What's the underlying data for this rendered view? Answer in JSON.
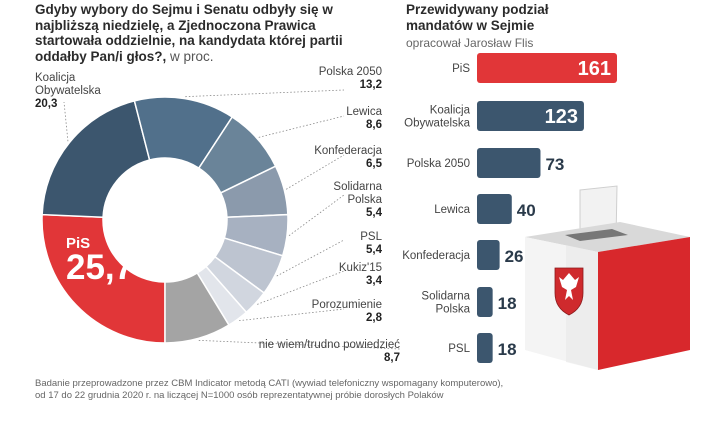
{
  "colors": {
    "pis": "#e13638",
    "party": "#3c566e",
    "light": "#b9c0cc"
  },
  "left": {
    "title": "Gdyby wybory do Sejmu i Senatu odbyły się w najbliższą niedzielę, a Zjednoczona Prawica startowała oddzielnie, na kandydata której partii oddałby Pan/i głos?,",
    "unit": "w proc."
  },
  "right": {
    "title_line1": "Przewidywany podział",
    "title_line2": "mandatów w Sejmie",
    "author": "opracował Jarosław Flis"
  },
  "footnote_line1": "Badanie przeprowadzone przez CBM Indicator metodą CATI (wywiad telefoniczny wspomagany komputerowo),",
  "footnote_line2": "od 17 do 22 grudnia 2020 r. na liczącej N=1000 osób reprezentatywnej próbie dorosłych Polaków",
  "chart_data": [
    {
      "type": "pie",
      "slices": [
        {
          "name": "PiS",
          "label": "PiS",
          "value": 25.7,
          "display": "25,7"
        },
        {
          "name": "Koalicja Obywatelska",
          "label": "Koalicja\nObywatelska",
          "value": 20.3,
          "display": "20,3"
        },
        {
          "name": "Polska 2050",
          "label": "Polska 2050",
          "value": 13.2,
          "display": "13,2"
        },
        {
          "name": "Lewica",
          "label": "Lewica",
          "value": 8.6,
          "display": "8,6"
        },
        {
          "name": "Konfederacja",
          "label": "Konfederacja",
          "value": 6.5,
          "display": "6,5"
        },
        {
          "name": "Solidarna Polska",
          "label": "Solidarna\nPolska",
          "value": 5.4,
          "display": "5,4"
        },
        {
          "name": "PSL",
          "label": "PSL",
          "value": 5.4,
          "display": "5,4"
        },
        {
          "name": "Kukiz'15",
          "label": "Kukiz'15",
          "value": 3.4,
          "display": "3,4"
        },
        {
          "name": "Porozumienie",
          "label": "Porozumienie",
          "value": 2.8,
          "display": "2,8"
        },
        {
          "name": "nie wiem/trudno powiedzieć",
          "label": "nie wiem/trudno powiedzieć",
          "value": 8.7,
          "display": "8,7"
        }
      ]
    },
    {
      "type": "bar",
      "orientation": "horizontal",
      "categories": [
        "PiS",
        "Koalicja\nObywatelska",
        "Polska 2050",
        "Lewica",
        "Konfederacja",
        "Solidarna\nPolska",
        "PSL"
      ],
      "values": [
        161,
        123,
        73,
        40,
        26,
        18,
        18
      ]
    }
  ]
}
